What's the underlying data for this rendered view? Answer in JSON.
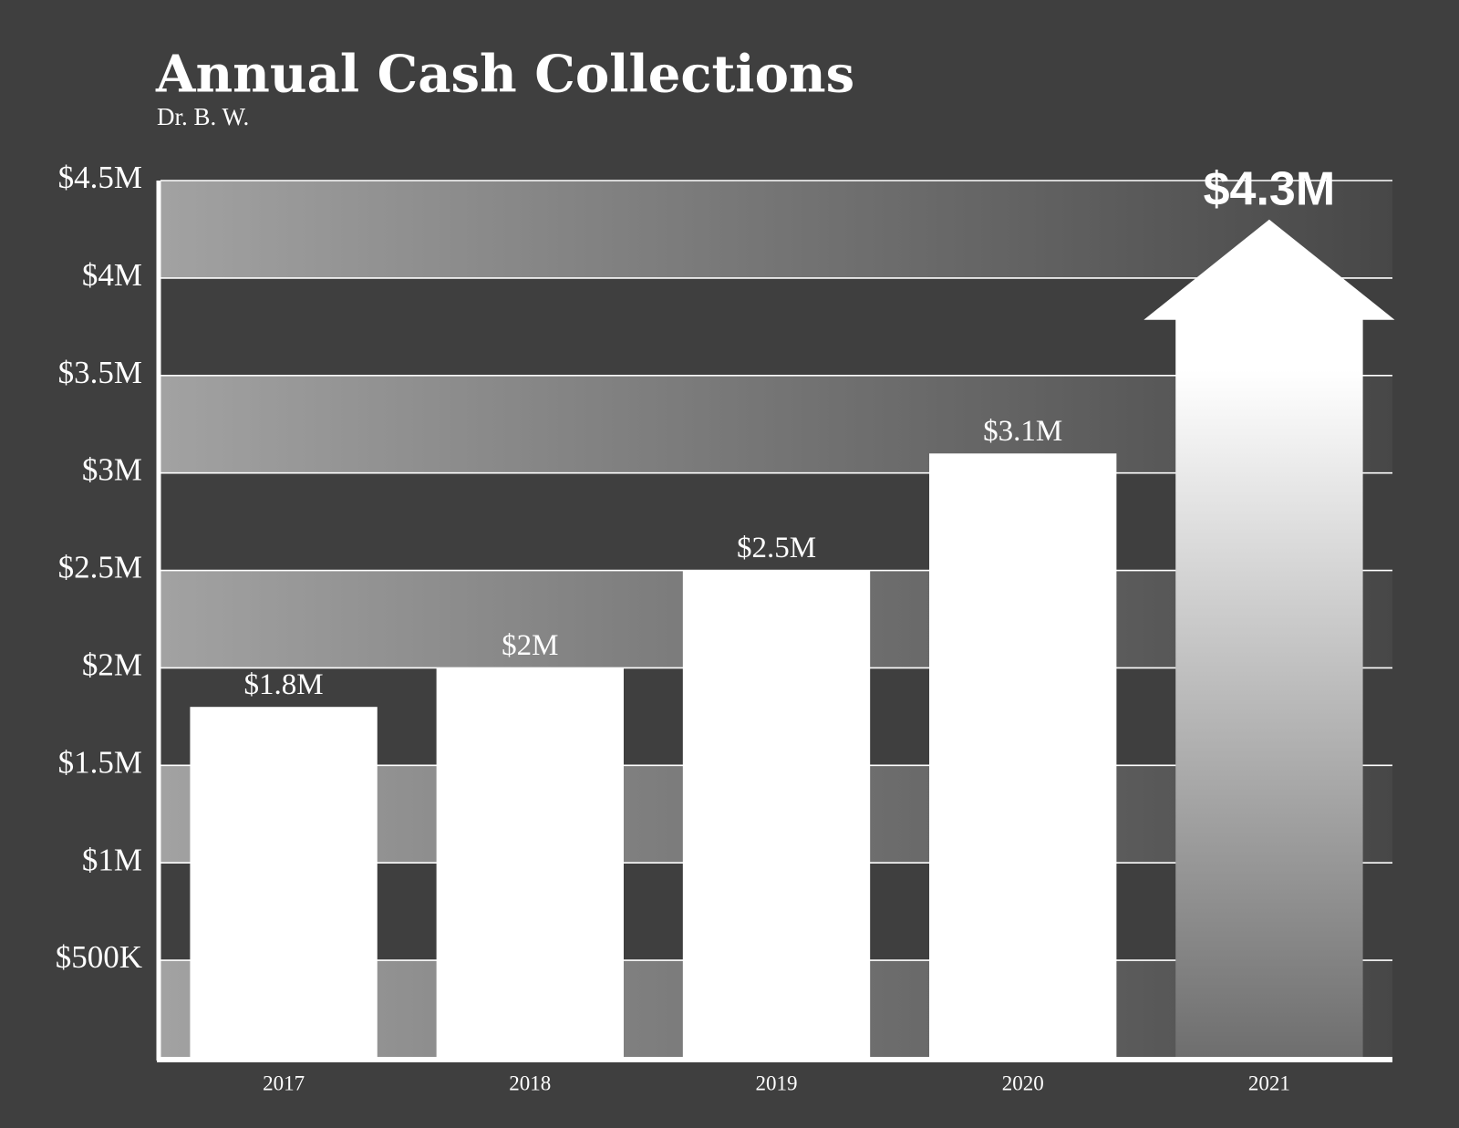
{
  "chart_data": {
    "type": "bar",
    "title": "Annual Cash Collections",
    "subtitle": "Dr. B. W.",
    "categories": [
      "2017",
      "2018",
      "2019",
      "2020",
      "2021"
    ],
    "values": [
      1800000,
      2000000,
      2500000,
      3100000,
      4300000
    ],
    "value_labels": [
      "$1.8M",
      "$2M",
      "$2.5M",
      "$3.1M",
      "$4.3M"
    ],
    "color": "#ffffff",
    "ylim": [
      0,
      4500000
    ],
    "yticks": [
      {
        "value": 500000,
        "label": "$500K"
      },
      {
        "value": 1000000,
        "label": "$1M"
      },
      {
        "value": 1500000,
        "label": "$1.5M"
      },
      {
        "value": 2000000,
        "label": "$2M"
      },
      {
        "value": 2500000,
        "label": "$2.5M"
      },
      {
        "value": 3000000,
        "label": "$3M"
      },
      {
        "value": 3500000,
        "label": "$3.5M"
      },
      {
        "value": 4000000,
        "label": "$4M"
      },
      {
        "value": 4500000,
        "label": "$4.5M"
      }
    ],
    "grid": true
  }
}
